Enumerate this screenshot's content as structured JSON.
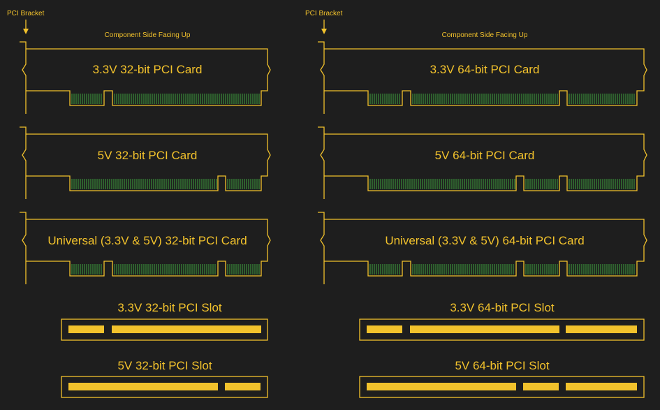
{
  "labels": {
    "bracket": "PCI Bracket",
    "component_side": "Component Side Facing Up"
  },
  "cards": [
    {
      "name": "3.3V 32-bit PCI Card"
    },
    {
      "name": "5V 32-bit PCI Card"
    },
    {
      "name": "Universal (3.3V & 5V) 32-bit PCI Card"
    },
    {
      "name": "3.3V 64-bit PCI Card"
    },
    {
      "name": "5V 64-bit PCI Card"
    },
    {
      "name": "Universal (3.3V & 5V) 64-bit PCI Card"
    }
  ],
  "slots": [
    {
      "name": "3.3V 32-bit PCI Slot"
    },
    {
      "name": "5V 32-bit PCI Slot"
    },
    {
      "name": "3.3V 64-bit PCI Slot"
    },
    {
      "name": "5V 64-bit PCI Slot"
    }
  ],
  "colors": {
    "background": "#1e1e1e",
    "outline": "#f2c22c",
    "pins": "#3ea33e"
  }
}
